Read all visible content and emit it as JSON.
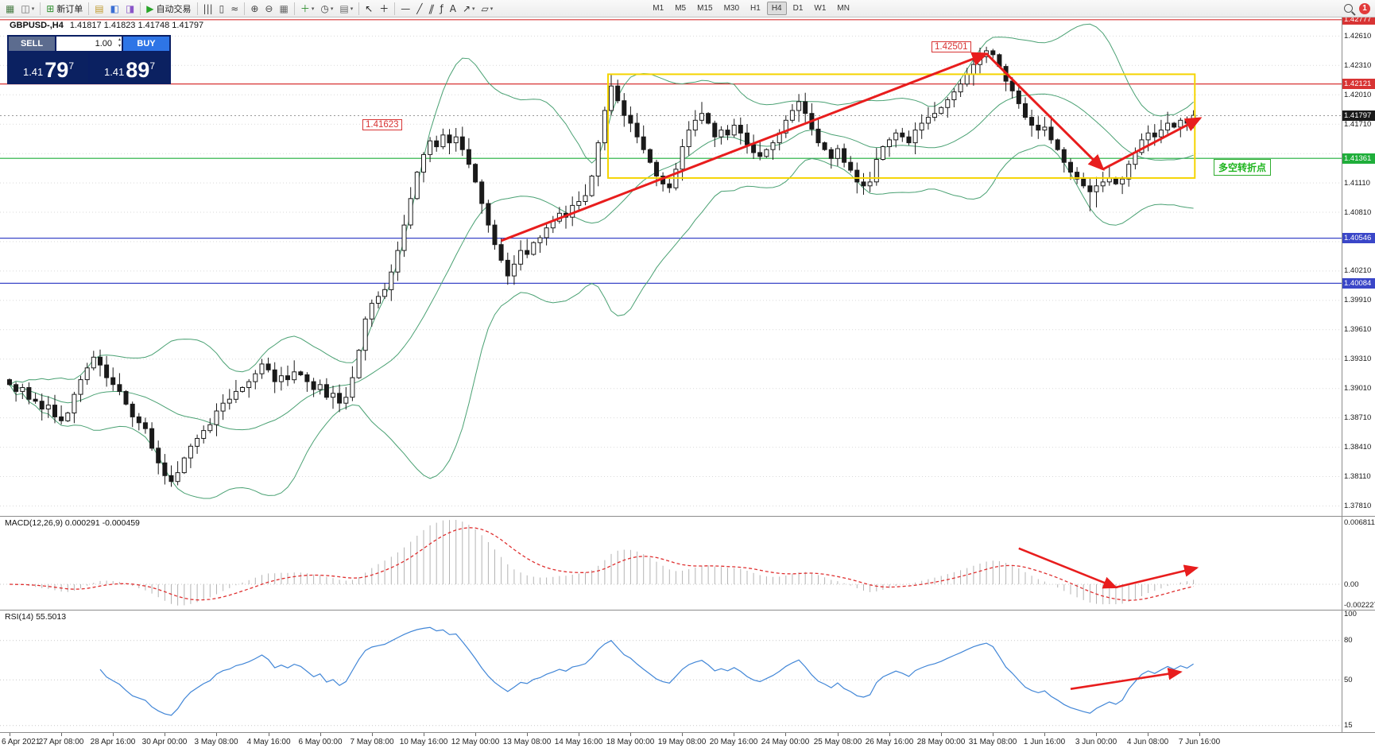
{
  "toolbar": {
    "groups": [
      {
        "items": [
          {
            "n": "new-chart-icon",
            "g": "▦",
            "c": "#4a7d46"
          },
          {
            "n": "profiles-icon",
            "g": "◫",
            "c": "#6b6b6b",
            "dd": true
          }
        ]
      },
      {
        "items": [
          {
            "n": "new-order-button",
            "g": "⊞",
            "c": "#2f8f2f",
            "t": "新订单"
          }
        ]
      },
      {
        "items": [
          {
            "n": "market-watch-icon",
            "g": "▤",
            "c": "#c09a2e"
          },
          {
            "n": "data-window-icon",
            "g": "◧",
            "c": "#3b6fd4"
          },
          {
            "n": "navigator-icon",
            "g": "◨",
            "c": "#8a56c8"
          }
        ]
      },
      {
        "items": [
          {
            "n": "autotrading-button",
            "g": "▶",
            "c": "#28a428",
            "t": "自动交易"
          }
        ]
      },
      {
        "items": [
          {
            "n": "bars-icon",
            "g": "|||",
            "c": "#444444"
          },
          {
            "n": "candles-icon",
            "g": "▯",
            "c": "#444444"
          },
          {
            "n": "line-chart-icon",
            "g": "≈",
            "c": "#444444"
          }
        ]
      },
      {
        "items": [
          {
            "n": "zoom-in-icon",
            "g": "⊕",
            "c": "#444444"
          },
          {
            "n": "zoom-out-icon",
            "g": "⊖",
            "c": "#444444"
          },
          {
            "n": "tile-windows-icon",
            "g": "▦",
            "c": "#6b6b6b"
          }
        ]
      },
      {
        "items": [
          {
            "n": "indicators-icon",
            "g": "＋",
            "c": "#2f8f2f",
            "dd": true
          },
          {
            "n": "periods-icon",
            "g": "◷",
            "c": "#444444",
            "dd": true
          },
          {
            "n": "templates-icon",
            "g": "▤",
            "c": "#6b6b6b",
            "dd": true
          }
        ]
      },
      {
        "items": [
          {
            "n": "cursor-icon",
            "g": "↖",
            "c": "#222222"
          },
          {
            "n": "crosshair-icon",
            "g": "＋",
            "c": "#222222"
          }
        ]
      },
      {
        "items": [
          {
            "n": "horizontal-line-icon",
            "g": "—",
            "c": "#333333"
          },
          {
            "n": "trendline-icon",
            "g": "╱",
            "c": "#333333"
          },
          {
            "n": "channel-icon",
            "g": "∥",
            "c": "#333333",
            "cls": "skew"
          },
          {
            "n": "fibonacci-icon",
            "g": "ƒ",
            "c": "#333333"
          },
          {
            "n": "text-icon",
            "g": "A",
            "c": "#333333"
          },
          {
            "n": "arrow-tool-icon",
            "g": "↗",
            "c": "#333333",
            "dd": true
          },
          {
            "n": "shapes-icon",
            "g": "▱",
            "c": "#333333",
            "dd": true
          }
        ]
      }
    ],
    "timeframes": [
      "M1",
      "M5",
      "M15",
      "M30",
      "H1",
      "H4",
      "D1",
      "W1",
      "MN"
    ],
    "active_timeframe": "H4",
    "notification_count": "1"
  },
  "chart": {
    "info": "GBPUSD-,H4",
    "ohlc": "1.41817 1.41823 1.41748 1.41797"
  },
  "one_click": {
    "sell_label": "SELL",
    "buy_label": "BUY",
    "volume": "1.00",
    "bid_small": "1.41",
    "bid_big": "79",
    "bid_sup": "7",
    "ask_small": "1.41",
    "ask_big": "89",
    "ask_sup": "7"
  },
  "annotations": {
    "peak_label": "1.42501",
    "swing_label": "1.41623",
    "note": "多空转折点"
  },
  "chart_data": {
    "type": "candlestick",
    "symbol": "GBPUSD-",
    "timeframe": "H4",
    "closes_pips": [
      3905,
      3898,
      3902,
      3890,
      3888,
      3880,
      3884,
      3872,
      3868,
      3876,
      3895,
      3910,
      3922,
      3933,
      3925,
      3912,
      3905,
      3898,
      3885,
      3872,
      3866,
      3860,
      3840,
      3825,
      3812,
      3806,
      3815,
      3830,
      3842,
      3850,
      3858,
      3864,
      3878,
      3886,
      3890,
      3898,
      3902,
      3908,
      3916,
      3926,
      3920,
      3908,
      3914,
      3910,
      3918,
      3915,
      3908,
      3900,
      3905,
      3892,
      3896,
      3886,
      3892,
      3912,
      3940,
      3972,
      3988,
      3995,
      4002,
      4020,
      4042,
      4068,
      4095,
      4122,
      4140,
      4154,
      4148,
      4160,
      4152,
      4158,
      4145,
      4130,
      4112,
      4090,
      4068,
      4048,
      4032,
      4016,
      4028,
      4042,
      4038,
      4050,
      4055,
      4065,
      4072,
      4080,
      4076,
      4088,
      4092,
      4098,
      4118,
      4152,
      4185,
      4210,
      4195,
      4180,
      4172,
      4158,
      4145,
      4132,
      4118,
      4110,
      4106,
      4125,
      4148,
      4165,
      4175,
      4182,
      4172,
      4158,
      4165,
      4160,
      4170,
      4162,
      4150,
      4142,
      4138,
      4145,
      4152,
      4162,
      4175,
      4185,
      4194,
      4182,
      4166,
      4152,
      4145,
      4136,
      4146,
      4132,
      4124,
      4112,
      4108,
      4112,
      4135,
      4148,
      4155,
      4162,
      4158,
      4152,
      4165,
      4172,
      4178,
      4182,
      4188,
      4196,
      4204,
      4212,
      4222,
      4232,
      4240,
      4246,
      4242,
      4230,
      4215,
      4205,
      4192,
      4178,
      4170,
      4165,
      4168,
      4155,
      4145,
      4132,
      4122,
      4115,
      4108,
      4102,
      4108,
      4112,
      4116,
      4110,
      4115,
      4130,
      4142,
      4155,
      4162,
      4158,
      4165,
      4172,
      4168,
      4175,
      4172,
      4180
    ],
    "price_base": 1.0,
    "pip": 0.0001,
    "price_axis": {
      "pmax": 1.428,
      "pmin": 1.377,
      "tick_start": 1.4261,
      "tick_step": 0.003,
      "tick_count": 17
    },
    "hlines": [
      {
        "price": 1.42777,
        "color": "#d83434",
        "label": "1.42777"
      },
      {
        "price": 1.42121,
        "color": "#d83434",
        "label": "1.42121"
      },
      {
        "price": 1.41361,
        "color": "#1fae3a",
        "label": "1.41361"
      },
      {
        "price": 1.40546,
        "color": "#3a46c8",
        "label": "1.40546"
      },
      {
        "price": 1.40084,
        "color": "#3a46c8",
        "label": "1.40084"
      }
    ],
    "bid": {
      "price": 1.41797,
      "label": "1.41797",
      "color": "#1a1a1a"
    },
    "bollinger": {
      "period": 20,
      "deviation": 2,
      "color": "#4aa173"
    },
    "rect": {
      "i1": 92.5,
      "p1": 1.4222,
      "i2": 183.2,
      "p2": 1.4116,
      "color": "#f5d400"
    },
    "trend_arrows": [
      {
        "i1": 76,
        "p1": 1.4052,
        "i2": 151,
        "p2": 1.4243
      },
      {
        "i1": 151,
        "p1": 1.4243,
        "i2": 169,
        "p2": 1.4125
      },
      {
        "i1": 169,
        "p1": 1.4125,
        "i2": 184,
        "p2": 1.4177
      }
    ],
    "arrow_color": "#e81d1d",
    "wick_highs": [
      {
        "i": 68,
        "high": 1.4166
      },
      {
        "i": 93,
        "high": 1.4222
      },
      {
        "i": 151,
        "high": 1.42501
      },
      {
        "i": 152,
        "high": 1.4248
      }
    ],
    "wick_lows": [
      {
        "i": 25,
        "low": 1.38005
      },
      {
        "i": 77,
        "low": 1.4007
      },
      {
        "i": 167,
        "low": 1.4082
      },
      {
        "i": 168,
        "low": 1.4086
      }
    ],
    "dates": [
      "6 Apr 2021",
      "27 Apr 08:00",
      "28 Apr 16:00",
      "30 Apr 00:00",
      "3 May 08:00",
      "4 May 16:00",
      "6 May 00:00",
      "7 May 08:00",
      "10 May 16:00",
      "12 May 00:00",
      "13 May 08:00",
      "14 May 16:00",
      "18 May 00:00",
      "19 May 08:00",
      "20 May 16:00",
      "24 May 00:00",
      "25 May 08:00",
      "26 May 16:00",
      "28 May 00:00",
      "31 May 08:00",
      "1 Jun 16:00",
      "3 Jun 00:00",
      "4 Jun 08:00",
      "7 Jun 16:00"
    ],
    "macd": {
      "title": "MACD(12,26,9)",
      "values": "0.000291 -0.000459",
      "fast": 12,
      "slow": 26,
      "signal": 9,
      "axis_labels": [
        "0.006811",
        "0.00",
        "-0.002227"
      ],
      "histogram_color": "#b4b4b4",
      "signal_color": "#df2f2f",
      "arrows": [
        {
          "i1": 156,
          "f1": 0.34,
          "i2": 171,
          "f2": 0.76
        },
        {
          "i1": 171,
          "f1": 0.76,
          "i2": 183.5,
          "f2": 0.55
        }
      ]
    },
    "rsi": {
      "title": "RSI(14) 55.5013",
      "period": 14,
      "color": "#4186d7",
      "axis": {
        "vmax": 103,
        "vmin": 10,
        "ticks": [
          100,
          80,
          50,
          15
        ]
      },
      "arrow": {
        "i1": 164,
        "v1": 43,
        "i2": 181,
        "v2": 56
      }
    }
  }
}
